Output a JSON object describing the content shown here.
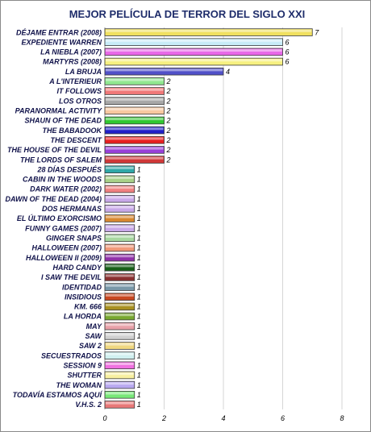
{
  "chart_data": {
    "type": "bar",
    "orientation": "horizontal",
    "title": "MEJOR PELÍCULA DE TERROR DEL SIGLO XXI",
    "xlabel": "",
    "ylabel": "",
    "xlim": [
      0,
      8
    ],
    "x_ticks": [
      "0",
      "2",
      "4",
      "6",
      "8"
    ],
    "grid": "vertical",
    "legend": "none",
    "categories": [
      "DÉJAME ENTRAR (2008)",
      "EXPEDIENTE WARREN",
      "LA NIEBLA (2007)",
      "MARTYRS (2008)",
      "LA BRUJA",
      "A L'INTERIEUR",
      "IT FOLLOWS",
      "LOS OTROS",
      "PARANORMAL ACTIVITY",
      "SHAUN OF THE DEAD",
      "THE BABADOOK",
      "THE DESCENT",
      "THE HOUSE OF THE DEVIL",
      "THE LORDS OF SALEM",
      "28 DÍAS DESPUÉS",
      "CABIN IN THE WOODS",
      "DARK WATER (2002)",
      "DAWN OF THE DEAD (2004)",
      "DOS HERMANAS",
      "EL ÚLTIMO EXORCISMO",
      "FUNNY GAMES (2007)",
      "GINGER SNAPS",
      "HALLOWEEN (2007)",
      "HALLOWEEN II (2009)",
      "HARD CANDY",
      "I SAW THE DEVIL",
      "IDENTIDAD",
      "INSIDIOUS",
      "KM. 666",
      "LA HORDA",
      "MAY",
      "SAW",
      "SAW 2",
      "SECUESTRADOS",
      "SESSION 9",
      "SHUTTER",
      "THE WOMAN",
      "TODAVÍA ESTAMOS AQUÍ",
      "V.H.S. 2"
    ],
    "values": [
      7,
      6,
      6,
      6,
      4,
      2,
      2,
      2,
      2,
      2,
      2,
      2,
      2,
      2,
      1,
      1,
      1,
      1,
      1,
      1,
      1,
      1,
      1,
      1,
      1,
      1,
      1,
      1,
      1,
      1,
      1,
      1,
      1,
      1,
      1,
      1,
      1,
      1,
      1
    ],
    "value_labels": [
      "7",
      "6",
      "6",
      "6",
      "4",
      "2",
      "2",
      "2",
      "2",
      "2",
      "2",
      "2",
      "2",
      "2",
      "1",
      "1",
      "1",
      "1",
      "1",
      "1",
      "1",
      "1",
      "1",
      "1",
      "1",
      "1",
      "1",
      "1",
      "1",
      "1",
      "1",
      "1",
      "1",
      "1",
      "1",
      "1",
      "1",
      "1",
      "1"
    ],
    "colors": [
      "#f0e060",
      "#c8ecf8",
      "#e868e8",
      "#f6f080",
      "#5050c8",
      "#90e890",
      "#f07878",
      "#a8a8a8",
      "#f8c8a0",
      "#30c830",
      "#2020c8",
      "#e82020",
      "#9840d8",
      "#d03838",
      "#30a8a8",
      "#a8d088",
      "#f08080",
      "#c8a8e8",
      "#c8a8e8",
      "#d88830",
      "#c8a8e8",
      "#a8d8a0",
      "#f09878",
      "#9030a8",
      "#186018",
      "#8a3030",
      "#7898a8",
      "#c84820",
      "#a89020",
      "#78a830",
      "#e8a0a8",
      "#d0d0d0",
      "#f0d880",
      "#d0f0f0",
      "#f070e0",
      "#f8f0a0",
      "#b8a8f0",
      "#78e878",
      "#e87878"
    ]
  }
}
